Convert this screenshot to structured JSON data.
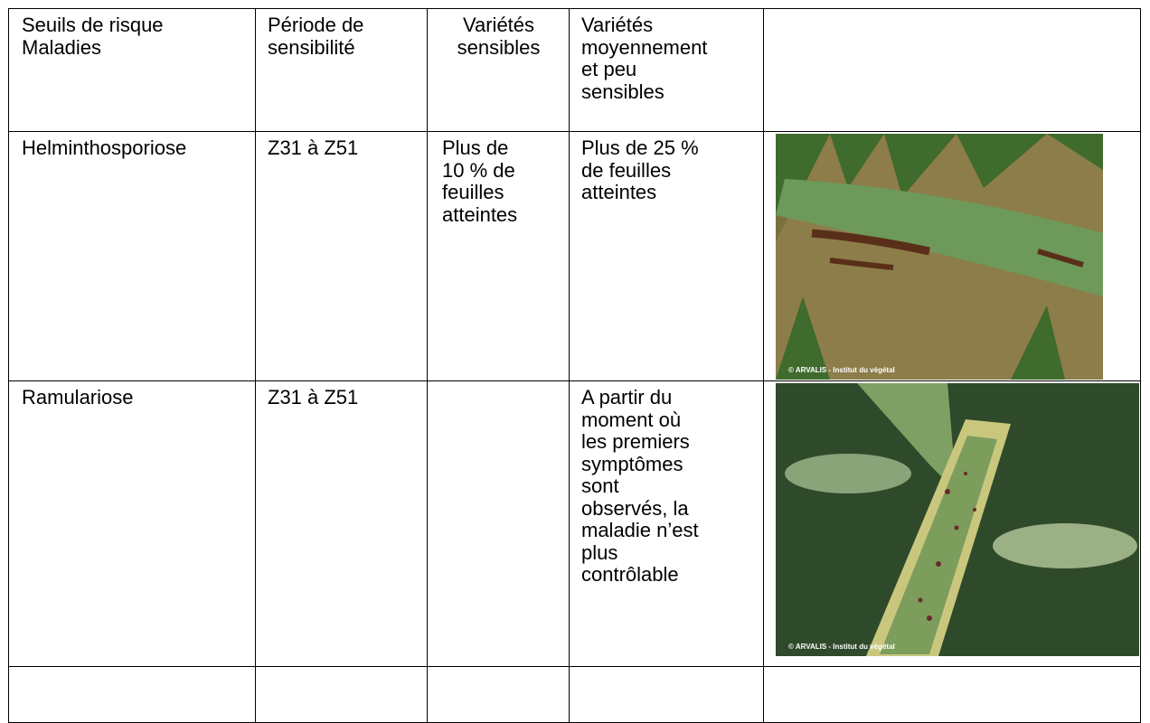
{
  "table": {
    "header": [
      [
        "Seuils de risque",
        "Maladies"
      ],
      [
        "Période de",
        "sensibilité"
      ],
      [
        "Variétés",
        "sensibles"
      ],
      [
        "Variétés",
        "moyennement",
        "et peu",
        "sensibles"
      ]
    ],
    "rows": [
      {
        "cells": [
          [
            "Helminthosporiose"
          ],
          [
            "Z31 à Z51"
          ],
          [
            "Plus de",
            "10 % de",
            "feuilles",
            "atteintes"
          ],
          [
            "Plus de 25 %",
            "de feuilles",
            "atteintes"
          ]
        ],
        "photo_credit": "© ARVALIS - Institut du végétal"
      },
      {
        "cells": [
          [
            "Ramulariose"
          ],
          [
            "Z31 à Z51"
          ],
          [],
          [
            "A partir du",
            "moment où",
            "les premiers",
            "symptômes",
            "sont",
            "observés, la",
            "maladie n’est",
            "plus",
            "contrôlable"
          ]
        ],
        "photo_credit": "© ARVALIS - Institut du végétal"
      },
      {
        "cells": [
          [],
          [],
          [],
          []
        ]
      }
    ]
  }
}
